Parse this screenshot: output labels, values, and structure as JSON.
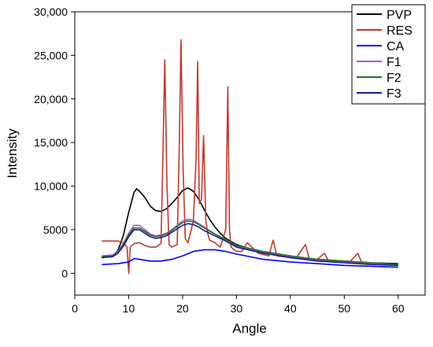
{
  "chart_data": {
    "type": "line",
    "xlabel": "Angle",
    "ylabel": "Intensity",
    "xlim": [
      0,
      65
    ],
    "ylim": [
      -2500,
      30000
    ],
    "xticks": [
      0,
      10,
      20,
      30,
      40,
      50,
      60
    ],
    "yticks": [
      0,
      5000,
      10000,
      15000,
      20000,
      25000,
      30000
    ],
    "ytick_labels": [
      "0",
      "5000",
      "10,000",
      "15,000",
      "20,000",
      "25,000",
      "30,000"
    ],
    "legend_position": "top-right",
    "grid": false,
    "series": [
      {
        "name": "PVP",
        "color": "#000000",
        "x": [
          5,
          7,
          8,
          9,
          10,
          11,
          11.5,
          12,
          13,
          14,
          15,
          16,
          17,
          18,
          19,
          20,
          21,
          22,
          23,
          24,
          25,
          26,
          27,
          28,
          30,
          33,
          36,
          40,
          45,
          50,
          55,
          60
        ],
        "y": [
          1800,
          2000,
          2600,
          4300,
          7000,
          9300,
          9700,
          9400,
          8700,
          7700,
          7200,
          7100,
          7400,
          8000,
          8700,
          9500,
          9800,
          9400,
          8500,
          7300,
          6200,
          5300,
          4600,
          4000,
          3300,
          2700,
          2300,
          1900,
          1600,
          1400,
          1200,
          1100
        ]
      },
      {
        "name": "RES",
        "color": "#c0392b",
        "x": [
          5,
          8,
          9,
          9.7,
          10,
          10.3,
          11,
          12,
          13,
          14,
          15,
          16,
          16.3,
          16.7,
          17.1,
          17.5,
          18,
          19,
          19.4,
          19.7,
          20.1,
          20.5,
          21,
          22,
          22.5,
          22.8,
          23.1,
          23.5,
          23.9,
          24.3,
          24.7,
          25,
          26,
          27,
          28,
          28.4,
          28.7,
          29,
          30,
          31,
          32,
          34,
          36,
          36.8,
          37.5,
          39,
          41,
          42.8,
          43.5,
          45,
          46.3,
          47,
          49,
          51,
          52.5,
          53.2,
          55,
          57,
          60
        ],
        "y": [
          3700,
          3700,
          3500,
          3000,
          0,
          3000,
          3400,
          3500,
          3200,
          3000,
          3000,
          3400,
          12000,
          24500,
          10000,
          3300,
          3000,
          3300,
          15000,
          26800,
          12000,
          4000,
          3500,
          6000,
          13000,
          24300,
          8000,
          8500,
          15800,
          6000,
          4500,
          3800,
          3500,
          3000,
          5000,
          21400,
          5000,
          3000,
          2500,
          2500,
          3500,
          2300,
          2000,
          3800,
          2000,
          1900,
          1700,
          3300,
          1700,
          1600,
          2300,
          1500,
          1400,
          1300,
          2300,
          1300,
          1200,
          1100,
          1000
        ]
      },
      {
        "name": "CA",
        "color": "#0000ff",
        "x": [
          5,
          8,
          10,
          11,
          12,
          14,
          16,
          18,
          20,
          22,
          24,
          26,
          28,
          30,
          35,
          40,
          45,
          50,
          55,
          60
        ],
        "y": [
          1000,
          1100,
          1300,
          1700,
          1600,
          1400,
          1400,
          1600,
          2000,
          2500,
          2700,
          2700,
          2500,
          2200,
          1600,
          1300,
          1100,
          900,
          800,
          700
        ]
      },
      {
        "name": "F1",
        "color": "#b24de6",
        "x": [
          5,
          7,
          8,
          9,
          10,
          11,
          12,
          13,
          14,
          15,
          16,
          17,
          18,
          19,
          20,
          21,
          22,
          23,
          24,
          26,
          28,
          30,
          35,
          40,
          45,
          50,
          55,
          60
        ],
        "y": [
          2000,
          2100,
          2500,
          3400,
          4600,
          5500,
          5500,
          5000,
          4500,
          4300,
          4400,
          4600,
          5000,
          5500,
          6000,
          6200,
          6100,
          5700,
          5300,
          4500,
          3800,
          3100,
          2400,
          1900,
          1500,
          1300,
          1100,
          1000
        ]
      },
      {
        "name": "F2",
        "color": "#1a7a1a",
        "x": [
          5,
          7,
          8,
          9,
          10,
          11,
          12,
          13,
          14,
          15,
          16,
          17,
          18,
          19,
          20,
          21,
          22,
          23,
          24,
          26,
          28,
          30,
          35,
          40,
          45,
          50,
          55,
          60
        ],
        "y": [
          1900,
          2000,
          2400,
          3300,
          4400,
          5200,
          5200,
          4800,
          4400,
          4200,
          4300,
          4500,
          4900,
          5400,
          5800,
          6000,
          5900,
          5600,
          5200,
          4500,
          3900,
          3200,
          2500,
          2000,
          1600,
          1400,
          1200,
          1000
        ]
      },
      {
        "name": "F3",
        "color": "#1a1a8c",
        "x": [
          5,
          7,
          8,
          9,
          10,
          11,
          12,
          13,
          14,
          15,
          16,
          17,
          18,
          19,
          20,
          21,
          22,
          23,
          24,
          26,
          28,
          30,
          35,
          40,
          45,
          50,
          55,
          60
        ],
        "y": [
          1800,
          1900,
          2300,
          3100,
          4200,
          5000,
          5000,
          4600,
          4200,
          4000,
          4100,
          4300,
          4700,
          5100,
          5500,
          5700,
          5600,
          5300,
          4900,
          4300,
          3700,
          3000,
          2300,
          1800,
          1400,
          1200,
          1000,
          900
        ]
      }
    ]
  }
}
